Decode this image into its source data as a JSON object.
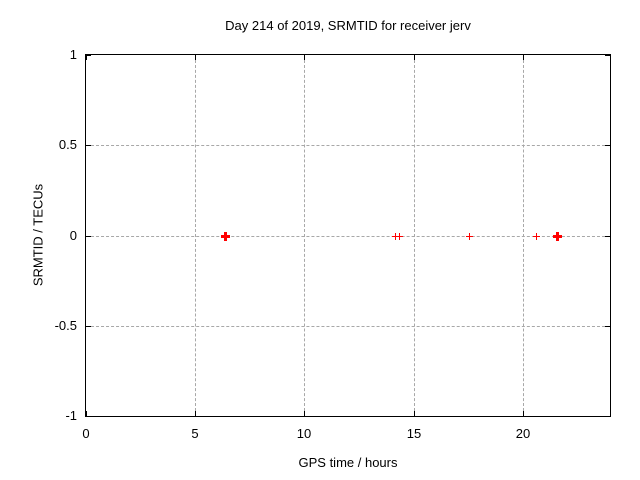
{
  "chart_data": {
    "type": "scatter",
    "title": "Day 214 of 2019, SRMTID for receiver jerv",
    "xlabel": "GPS time / hours",
    "ylabel": "SRMTID / TECUs",
    "xlim": [
      0,
      24
    ],
    "ylim": [
      -1,
      1
    ],
    "xticks": {
      "values": [
        0,
        5,
        10,
        15,
        20
      ],
      "labels": [
        "0",
        "5",
        "10",
        "15",
        "20"
      ]
    },
    "yticks": {
      "values": [
        1,
        0.5,
        0,
        -0.5,
        -1
      ],
      "labels": [
        "1",
        "0.5",
        "0",
        "-0.5",
        "-1"
      ]
    },
    "grid": "dotted-at-ticks",
    "legend": "none",
    "colors": {
      "marker": "#ff0000",
      "grid": "#a8a8a8",
      "axis": "#000000",
      "background": "#ffffff"
    },
    "series": [
      {
        "name": "SRMTID",
        "marker": "plus",
        "points": [
          {
            "x": 6.35,
            "y": 0,
            "bold": true
          },
          {
            "x": 14.15,
            "y": 0,
            "bold": false
          },
          {
            "x": 14.35,
            "y": 0,
            "bold": false
          },
          {
            "x": 17.55,
            "y": 0,
            "bold": false
          },
          {
            "x": 20.6,
            "y": 0,
            "bold": false
          },
          {
            "x": 21.55,
            "y": 0,
            "bold": true
          }
        ]
      }
    ]
  }
}
